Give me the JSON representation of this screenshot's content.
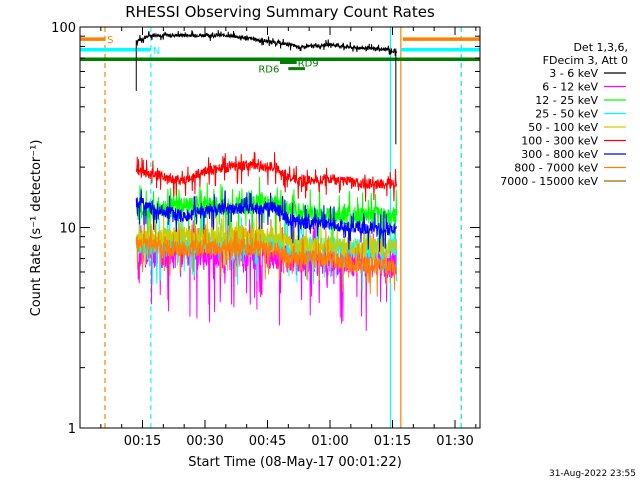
{
  "chart_data": {
    "type": "line",
    "title": "RHESSI Observing Summary Count Rates",
    "xlabel": "Start Time (08-May-17 00:01:22)",
    "ylabel": "Count Rate (s⁻¹ detector⁻¹)",
    "yscale": "log",
    "ylim": [
      1,
      100
    ],
    "xlim_minutes": [
      0,
      96
    ],
    "x_ticks": [
      {
        "label": "00:15",
        "minute": 15
      },
      {
        "label": "00:30",
        "minute": 30
      },
      {
        "label": "00:45",
        "minute": 45
      },
      {
        "label": "01:00",
        "minute": 60
      },
      {
        "label": "01:15",
        "minute": 75
      },
      {
        "label": "01:30",
        "minute": 90
      }
    ],
    "y_ticks": [
      {
        "label": "1",
        "value": 1
      },
      {
        "label": "10",
        "value": 10
      },
      {
        "label": "100",
        "value": 100
      }
    ],
    "legend_header": [
      "Det 1,3,6,",
      "FDecim 3, Att 0"
    ],
    "legend_placement": "right",
    "series": [
      {
        "name": "3 - 6 keV",
        "color": "#000000",
        "points": [
          [
            13.5,
            85
          ],
          [
            17,
            91
          ],
          [
            25,
            91
          ],
          [
            35,
            91
          ],
          [
            40,
            88
          ],
          [
            45,
            85
          ],
          [
            50,
            82
          ],
          [
            53,
            79
          ],
          [
            60,
            82
          ],
          [
            65,
            79
          ],
          [
            70,
            78
          ],
          [
            74,
            77
          ],
          [
            76,
            75
          ]
        ]
      },
      {
        "name": "6 - 12 keV",
        "color": "#ff00ff",
        "points": [
          [
            13.5,
            7.5
          ],
          [
            20,
            7.6
          ],
          [
            30,
            7.4
          ],
          [
            40,
            7.3
          ],
          [
            45,
            7.5
          ],
          [
            53,
            6.8
          ],
          [
            60,
            6.9
          ],
          [
            70,
            6.8
          ],
          [
            76,
            6.7
          ]
        ]
      },
      {
        "name": "12 - 25 keV",
        "color": "#00ff00",
        "points": [
          [
            13.5,
            12
          ],
          [
            20,
            12.5
          ],
          [
            30,
            13
          ],
          [
            40,
            13
          ],
          [
            45,
            13.5
          ],
          [
            53,
            12
          ],
          [
            60,
            11.5
          ],
          [
            70,
            11.5
          ],
          [
            76,
            11.5
          ]
        ]
      },
      {
        "name": "25 - 50 keV",
        "color": "#00ffff",
        "points": [
          [
            13.5,
            8.2
          ],
          [
            20,
            8.5
          ],
          [
            30,
            8.5
          ],
          [
            40,
            8.3
          ],
          [
            45,
            8.5
          ],
          [
            53,
            8
          ],
          [
            60,
            8
          ],
          [
            70,
            7.9
          ],
          [
            76,
            7.9
          ]
        ]
      },
      {
        "name": "50 - 100 keV",
        "color": "#cccc00",
        "points": [
          [
            13.5,
            8.8
          ],
          [
            20,
            9
          ],
          [
            30,
            9.1
          ],
          [
            40,
            9.2
          ],
          [
            45,
            9.1
          ],
          [
            53,
            8.2
          ],
          [
            60,
            8.1
          ],
          [
            70,
            8
          ],
          [
            76,
            8
          ]
        ]
      },
      {
        "name": "100 - 300 keV",
        "color": "#ff0000",
        "points": [
          [
            13.5,
            19
          ],
          [
            20,
            18
          ],
          [
            25,
            17
          ],
          [
            30,
            19
          ],
          [
            35,
            20
          ],
          [
            40,
            20.5
          ],
          [
            47,
            20
          ],
          [
            50,
            18
          ],
          [
            53,
            17
          ],
          [
            60,
            17.5
          ],
          [
            65,
            17
          ],
          [
            70,
            16.5
          ],
          [
            76,
            16.5
          ]
        ]
      },
      {
        "name": "300 - 800 keV",
        "color": "#0000ff",
        "points": [
          [
            13.5,
            13.5
          ],
          [
            20,
            12
          ],
          [
            25,
            11.5
          ],
          [
            30,
            12
          ],
          [
            35,
            12.5
          ],
          [
            40,
            12.5
          ],
          [
            47,
            12.5
          ],
          [
            50,
            11
          ],
          [
            53,
            10.5
          ],
          [
            60,
            10.5
          ],
          [
            65,
            10
          ],
          [
            70,
            10
          ],
          [
            76,
            9.8
          ]
        ]
      },
      {
        "name": "800 - 7000 keV",
        "color": "#ff8000",
        "points": [
          [
            13.5,
            8.3
          ],
          [
            20,
            8
          ],
          [
            25,
            7.8
          ],
          [
            30,
            8
          ],
          [
            35,
            8
          ],
          [
            40,
            8
          ],
          [
            47,
            7.8
          ],
          [
            50,
            7
          ],
          [
            53,
            7
          ],
          [
            60,
            7
          ],
          [
            65,
            6.6
          ],
          [
            70,
            6.5
          ],
          [
            76,
            6.4
          ]
        ]
      },
      {
        "name": "7000 - 15000 keV",
        "color": "#aa6600",
        "points": []
      }
    ],
    "annotations": [
      {
        "text": "S",
        "color": "#ff8000",
        "y": 87,
        "x_range": [
          0,
          6
        ]
      },
      {
        "text": "N",
        "color": "#00ffff",
        "y": 77,
        "x_range": [
          0,
          17
        ]
      },
      {
        "text": "RD6",
        "color": "#008000",
        "y": 62,
        "x_range": [
          50,
          54
        ]
      },
      {
        "text": "RD9",
        "color": "#008000",
        "y": 66.5,
        "x_range": [
          48,
          52
        ]
      }
    ],
    "bars": [
      {
        "color": "#008000",
        "y": 69,
        "x_range": [
          0,
          96
        ]
      },
      {
        "color": "#00ffff",
        "y": 77,
        "x_range": [
          0,
          17
        ]
      },
      {
        "color": "#00ffff",
        "y": 77,
        "x_range": [
          77,
          96
        ]
      },
      {
        "color": "#ff8000",
        "y": 87,
        "x_range": [
          0,
          6
        ]
      },
      {
        "color": "#ff8000",
        "y": 87,
        "x_range": [
          77.5,
          96
        ]
      }
    ],
    "vlines": [
      {
        "minute": 6,
        "color": "#ff8000",
        "style": "dashed"
      },
      {
        "minute": 17,
        "color": "#00ffff",
        "style": "dashed"
      },
      {
        "minute": 74.5,
        "color": "#00ffff",
        "style": "solid"
      },
      {
        "minute": 77,
        "color": "#ff8000",
        "style": "solid"
      },
      {
        "minute": 91.5,
        "color": "#ff8000",
        "style": "dashed"
      },
      {
        "minute": 91.5,
        "color": "#00ffff",
        "style": "dashed"
      }
    ]
  },
  "footer": {
    "timestamp": "31-Aug-2022 23:55"
  }
}
